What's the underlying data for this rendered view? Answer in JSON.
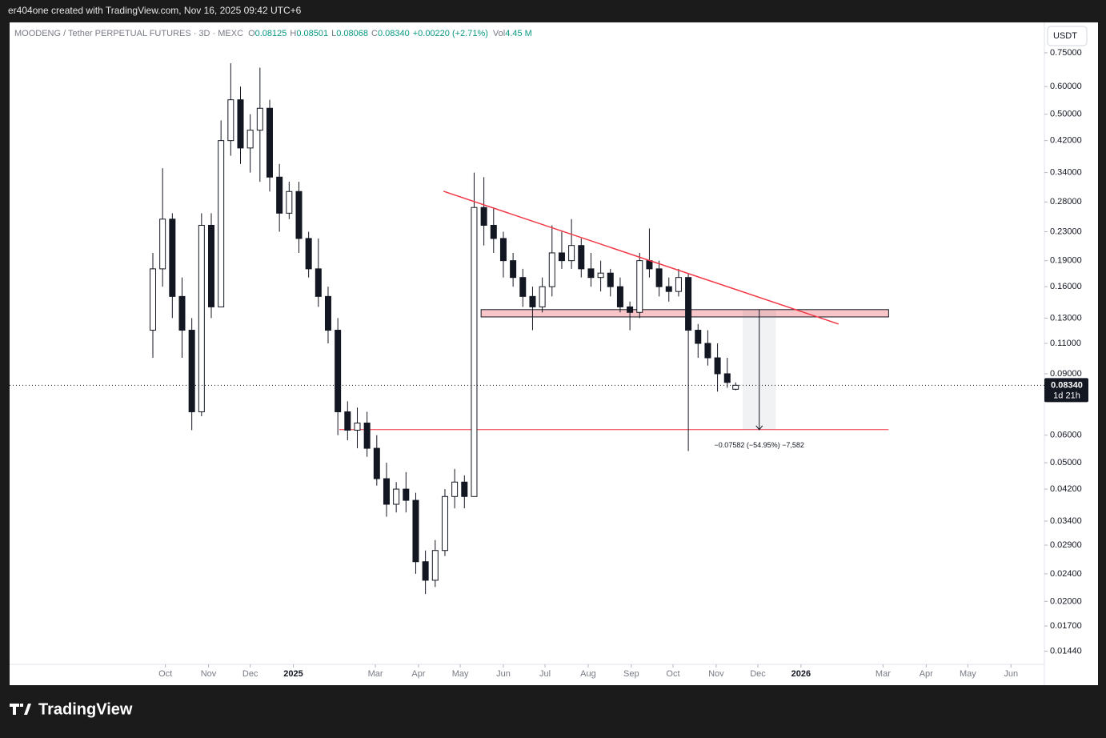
{
  "header": {
    "credit": "er404one created with TradingView.com, Nov 16, 2025 09:42 UTC+6",
    "brand": "TradingView"
  },
  "chart_data": {
    "type": "candlestick",
    "legend": {
      "symbol": "MOODENG / Tether PERPETUAL FUTURES · 3D · MEXC",
      "fields": [
        {
          "key": "O",
          "value": "0.08125"
        },
        {
          "key": "H",
          "value": "0.08501"
        },
        {
          "key": "L",
          "value": "0.08068"
        },
        {
          "key": "C",
          "value": "0.08340"
        }
      ],
      "change": "+0.00220 (+2.71%)",
      "volume": {
        "key": "Vol",
        "value": "4.45 M"
      }
    },
    "currency": "USDT",
    "log_scale": true,
    "ylim": [
      0.0115,
      0.917
    ],
    "yticks": [
      {
        "value": 0.75,
        "label": "0.75000"
      },
      {
        "value": 0.6,
        "label": "0.60000"
      },
      {
        "value": 0.5,
        "label": "0.50000"
      },
      {
        "value": 0.42,
        "label": "0.42000"
      },
      {
        "value": 0.34,
        "label": "0.34000"
      },
      {
        "value": 0.28,
        "label": "0.28000"
      },
      {
        "value": 0.23,
        "label": "0.23000"
      },
      {
        "value": 0.19,
        "label": "0.19000"
      },
      {
        "value": 0.16,
        "label": "0.16000"
      },
      {
        "value": 0.13,
        "label": "0.13000"
      },
      {
        "value": 0.11,
        "label": "0.11000"
      },
      {
        "value": 0.09,
        "label": "0.09000"
      },
      {
        "value": 0.06,
        "label": "0.06000"
      },
      {
        "value": 0.05,
        "label": "0.05000"
      },
      {
        "value": 0.042,
        "label": "0.04200"
      },
      {
        "value": 0.034,
        "label": "0.03400"
      },
      {
        "value": 0.029,
        "label": "0.02900"
      },
      {
        "value": 0.024,
        "label": "0.02400"
      },
      {
        "value": 0.02,
        "label": "0.02000"
      },
      {
        "value": 0.017,
        "label": "0.01700"
      },
      {
        "value": 0.0144,
        "label": "0.01440"
      }
    ],
    "xlim": [
      "2024-06-11",
      "2026-06-25"
    ],
    "xticks": [
      {
        "value": "2024-10-01",
        "label": "Oct"
      },
      {
        "value": "2024-11-01",
        "label": "Nov"
      },
      {
        "value": "2024-12-01",
        "label": "Dec"
      },
      {
        "value": "2025-01-01",
        "label": "2025"
      },
      {
        "value": "2025-03-01",
        "label": "Mar"
      },
      {
        "value": "2025-04-01",
        "label": "Apr"
      },
      {
        "value": "2025-05-01",
        "label": "May"
      },
      {
        "value": "2025-06-01",
        "label": "Jun"
      },
      {
        "value": "2025-07-01",
        "label": "Jul"
      },
      {
        "value": "2025-08-01",
        "label": "Aug"
      },
      {
        "value": "2025-09-01",
        "label": "Sep"
      },
      {
        "value": "2025-10-01",
        "label": "Oct"
      },
      {
        "value": "2025-11-01",
        "label": "Nov"
      },
      {
        "value": "2025-12-01",
        "label": "Dec"
      },
      {
        "value": "2026-01-01",
        "label": "2026"
      },
      {
        "value": "2026-03-01",
        "label": "Mar"
      },
      {
        "value": "2026-04-01",
        "label": "Apr"
      },
      {
        "value": "2026-05-01",
        "label": "May"
      },
      {
        "value": "2026-06-01",
        "label": "Jun"
      }
    ],
    "x": [
      "2024-09-22",
      "2024-09-29",
      "2024-10-06",
      "2024-10-13",
      "2024-10-20",
      "2024-10-27",
      "2024-11-03",
      "2024-11-10",
      "2024-11-17",
      "2024-11-24",
      "2024-12-01",
      "2024-12-08",
      "2024-12-15",
      "2024-12-22",
      "2024-12-29",
      "2025-01-05",
      "2025-01-12",
      "2025-01-19",
      "2025-01-26",
      "2025-02-02",
      "2025-02-09",
      "2025-02-16",
      "2025-02-23",
      "2025-03-02",
      "2025-03-09",
      "2025-03-16",
      "2025-03-23",
      "2025-03-30",
      "2025-04-06",
      "2025-04-13",
      "2025-04-20",
      "2025-04-27",
      "2025-05-04",
      "2025-05-11",
      "2025-05-18",
      "2025-05-25",
      "2025-06-01",
      "2025-06-08",
      "2025-06-15",
      "2025-06-22",
      "2025-06-29",
      "2025-07-06",
      "2025-07-13",
      "2025-07-20",
      "2025-07-27",
      "2025-08-03",
      "2025-08-10",
      "2025-08-17",
      "2025-08-24",
      "2025-08-31",
      "2025-09-07",
      "2025-09-14",
      "2025-09-21",
      "2025-09-28",
      "2025-10-05",
      "2025-10-12",
      "2025-10-19",
      "2025-10-26",
      "2025-11-02",
      "2025-11-09",
      "2025-11-15"
    ],
    "open": [
      0.12,
      0.18,
      0.25,
      0.15,
      0.12,
      0.07,
      0.24,
      0.14,
      0.42,
      0.55,
      0.4,
      0.45,
      0.52,
      0.33,
      0.26,
      0.3,
      0.22,
      0.18,
      0.15,
      0.12,
      0.07,
      0.062,
      0.065,
      0.055,
      0.045,
      0.038,
      0.042,
      0.039,
      0.026,
      0.023,
      0.028,
      0.04,
      0.044,
      0.04,
      0.27,
      0.24,
      0.22,
      0.19,
      0.17,
      0.15,
      0.14,
      0.16,
      0.2,
      0.19,
      0.21,
      0.18,
      0.17,
      0.175,
      0.16,
      0.14,
      0.135,
      0.19,
      0.18,
      0.16,
      0.155,
      0.17,
      0.12,
      0.11,
      0.1,
      0.09,
      0.08125
    ],
    "high": [
      0.2,
      0.35,
      0.26,
      0.17,
      0.13,
      0.26,
      0.26,
      0.48,
      0.7,
      0.6,
      0.5,
      0.68,
      0.55,
      0.36,
      0.32,
      0.32,
      0.23,
      0.22,
      0.16,
      0.13,
      0.075,
      0.072,
      0.07,
      0.06,
      0.05,
      0.044,
      0.047,
      0.041,
      0.028,
      0.03,
      0.042,
      0.048,
      0.046,
      0.34,
      0.33,
      0.27,
      0.23,
      0.2,
      0.18,
      0.16,
      0.17,
      0.24,
      0.23,
      0.25,
      0.22,
      0.2,
      0.19,
      0.18,
      0.17,
      0.145,
      0.2,
      0.235,
      0.19,
      0.17,
      0.18,
      0.175,
      0.125,
      0.12,
      0.11,
      0.1,
      0.08501
    ],
    "low": [
      0.1,
      0.16,
      0.13,
      0.1,
      0.062,
      0.068,
      0.13,
      0.14,
      0.38,
      0.36,
      0.34,
      0.32,
      0.3,
      0.23,
      0.25,
      0.2,
      0.17,
      0.14,
      0.11,
      0.06,
      0.058,
      0.055,
      0.052,
      0.043,
      0.035,
      0.036,
      0.036,
      0.024,
      0.021,
      0.022,
      0.027,
      0.037,
      0.037,
      0.04,
      0.21,
      0.2,
      0.17,
      0.16,
      0.14,
      0.12,
      0.135,
      0.15,
      0.18,
      0.18,
      0.17,
      0.16,
      0.155,
      0.15,
      0.135,
      0.12,
      0.13,
      0.17,
      0.15,
      0.145,
      0.15,
      0.054,
      0.1,
      0.095,
      0.08,
      0.082,
      0.08068
    ],
    "close": [
      0.18,
      0.25,
      0.15,
      0.12,
      0.07,
      0.24,
      0.14,
      0.42,
      0.55,
      0.4,
      0.45,
      0.52,
      0.33,
      0.26,
      0.3,
      0.22,
      0.18,
      0.15,
      0.12,
      0.07,
      0.062,
      0.065,
      0.055,
      0.045,
      0.038,
      0.042,
      0.039,
      0.026,
      0.023,
      0.028,
      0.04,
      0.044,
      0.04,
      0.27,
      0.24,
      0.22,
      0.19,
      0.17,
      0.15,
      0.14,
      0.16,
      0.2,
      0.19,
      0.21,
      0.18,
      0.17,
      0.175,
      0.16,
      0.14,
      0.135,
      0.19,
      0.18,
      0.16,
      0.155,
      0.17,
      0.12,
      0.11,
      0.1,
      0.09,
      0.085,
      0.0834
    ],
    "last_price": {
      "value": 0.0834,
      "label": "0.08340",
      "countdown": "1d 21h"
    },
    "drawings": {
      "trendline": {
        "x": [
          "2025-04-19",
          "2026-01-28"
        ],
        "y": [
          0.3005,
          0.125
        ],
        "color": "#f23645"
      },
      "zone": {
        "x": [
          "2025-05-16",
          "2026-03-05"
        ],
        "y": [
          0.1375,
          0.131
        ],
        "color": "#f8c5c8"
      },
      "support": {
        "x": [
          "2025-02-03",
          "2026-03-05"
        ],
        "y": 0.0622,
        "color": "#f23645"
      },
      "measure": {
        "x": [
          "2025-11-20",
          "2025-12-14"
        ],
        "y": [
          0.1375,
          0.0622
        ],
        "label": "−0.07582 (−54.95%) −7,582"
      }
    }
  }
}
